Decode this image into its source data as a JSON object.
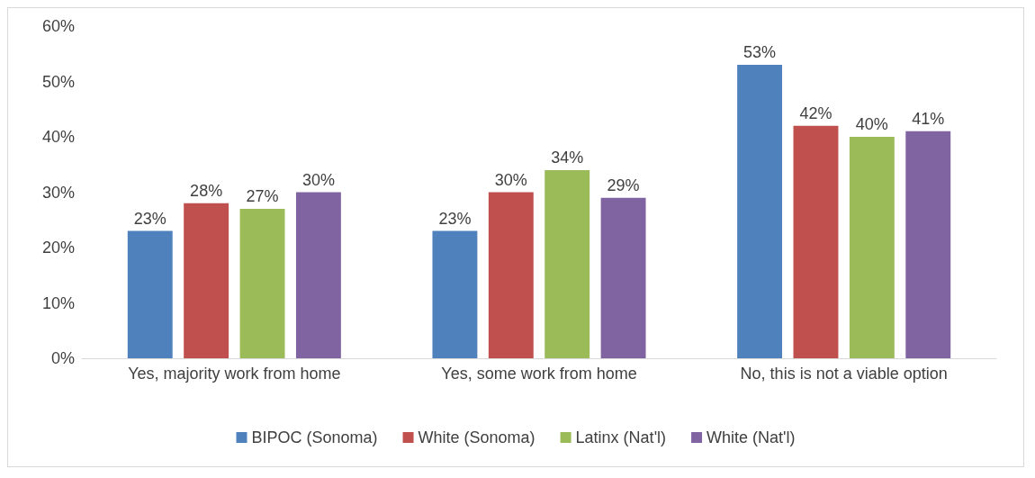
{
  "chart_data": {
    "type": "bar",
    "categories": [
      "Yes, majority work from home",
      "Yes, some work from home",
      "No, this is not a viable option"
    ],
    "series": [
      {
        "name": "BIPOC (Sonoma)",
        "color": "#4f81bd",
        "values": [
          23,
          23,
          53
        ],
        "value_labels": [
          "23%",
          "23%",
          "53%"
        ]
      },
      {
        "name": "White (Sonoma)",
        "color": "#c0504d",
        "values": [
          28,
          30,
          42
        ],
        "value_labels": [
          "28%",
          "30%",
          "42%"
        ]
      },
      {
        "name": "Latinx (Nat'l)",
        "color": "#9bbb59",
        "values": [
          27,
          34,
          40
        ],
        "value_labels": [
          "27%",
          "34%",
          "40%"
        ]
      },
      {
        "name": "White (Nat'l)",
        "color": "#8064a2",
        "values": [
          30,
          29,
          41
        ],
        "value_labels": [
          "30%",
          "29%",
          "41%"
        ]
      }
    ],
    "ylim": [
      0,
      60
    ],
    "yticks": [
      {
        "value": 0,
        "label": "0%"
      },
      {
        "value": 10,
        "label": "10%"
      },
      {
        "value": 20,
        "label": "20%"
      },
      {
        "value": 30,
        "label": "30%"
      },
      {
        "value": 40,
        "label": "40%"
      },
      {
        "value": 50,
        "label": "50%"
      },
      {
        "value": 60,
        "label": "60%"
      }
    ],
    "grid": false,
    "legend": "bottom"
  }
}
